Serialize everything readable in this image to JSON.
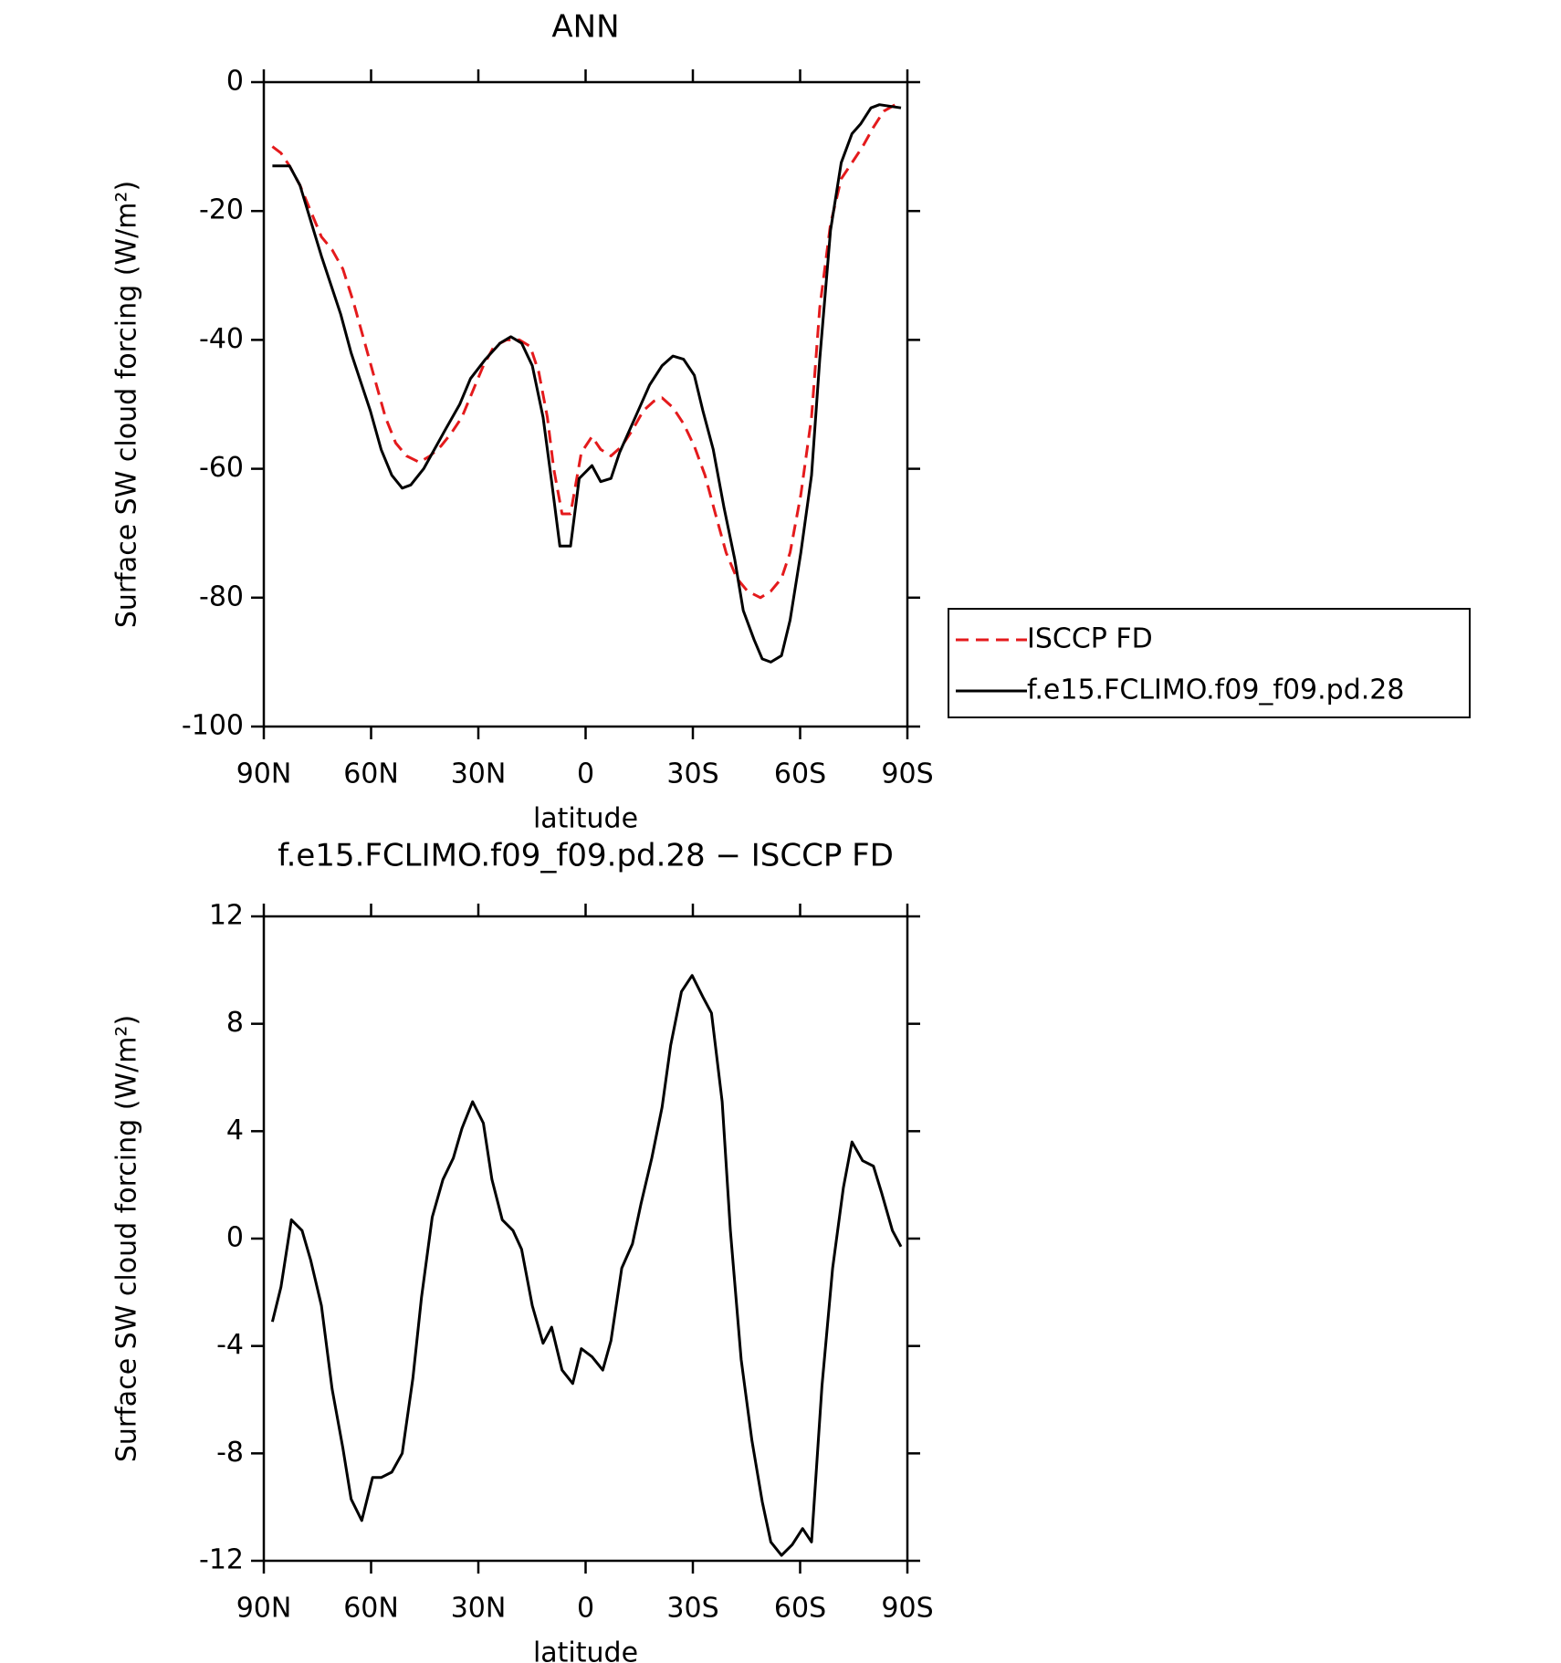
{
  "chart_data": [
    {
      "type": "line",
      "title": "ANN",
      "xlabel": "latitude",
      "ylabel": "Surface SW cloud forcing (W/m²)",
      "xlim": [
        90,
        -90
      ],
      "xticks": [
        {
          "value": 90,
          "label": "90N"
        },
        {
          "value": 60,
          "label": "60N"
        },
        {
          "value": 30,
          "label": "30N"
        },
        0,
        {
          "value": -30,
          "label": "30S"
        },
        {
          "value": -60,
          "label": "60S"
        },
        {
          "value": -90,
          "label": "90S"
        }
      ],
      "ylim": [
        -100,
        0
      ],
      "yticks": [
        -100,
        -80,
        -60,
        -40,
        -20,
        0
      ],
      "legend": "right",
      "series": [
        {
          "name": "ISCCP FD",
          "color": "#e41a1c",
          "dash": true,
          "x": [
            87.6,
            85.2,
            82.8,
            79.9,
            76.9,
            73.9,
            70.9,
            67.9,
            65.0,
            62.0,
            59.0,
            56.0,
            53.1,
            50.1,
            46.5,
            43.5,
            40.5,
            37.6,
            34.6,
            31.6,
            28.6,
            25.6,
            22.1,
            18.5,
            15.5,
            13.1,
            10.7,
            8.9,
            6.6,
            4.2,
            1.2,
            -1.8,
            -4.2,
            -7.1,
            -10.1,
            -13.1,
            -16.1,
            -19.1,
            -21.4,
            -24.4,
            -27.4,
            -30.4,
            -33.4,
            -36.3,
            -39.3,
            -42.3,
            -45.3,
            -48.9,
            -51.8,
            -54.8,
            -57.2,
            -60.2,
            -63.2,
            -65.5,
            -68.5,
            -71.5,
            -74.5,
            -77.5,
            -80.5,
            -83.4,
            -88.2
          ],
          "values": [
            -10,
            -11,
            -13,
            -16,
            -20,
            -24,
            -26,
            -29,
            -34,
            -40,
            -46,
            -52,
            -56,
            -58,
            -59,
            -58,
            -56.5,
            -54.5,
            -52,
            -48,
            -44,
            -41,
            -40,
            -40,
            -41,
            -45,
            -52,
            -60,
            -67,
            -67,
            -57.5,
            -55,
            -57,
            -58,
            -56.5,
            -54,
            -51,
            -49.5,
            -49,
            -50.5,
            -53,
            -56.5,
            -61,
            -67,
            -73,
            -77,
            -79,
            -80,
            -79,
            -77,
            -73,
            -64,
            -52,
            -35,
            -22,
            -15,
            -12.5,
            -10,
            -7,
            -4.5,
            -3
          ]
        },
        {
          "name": "f.e15.FCLIMO.f09_f09.pd.28",
          "color": "#000000",
          "dash": false,
          "x": [
            87.6,
            82.8,
            79.9,
            73.9,
            68.5,
            65.6,
            62.6,
            60.2,
            57.2,
            54.2,
            51.3,
            48.9,
            45.3,
            39.3,
            35.2,
            32.2,
            28.0,
            23.9,
            20.9,
            17.9,
            14.9,
            11.9,
            9.5,
            7.2,
            4.2,
            1.8,
            -1.8,
            -4.2,
            -7.1,
            -9.5,
            -13.1,
            -17.9,
            -21.4,
            -24.4,
            -27.4,
            -30.4,
            -32.8,
            -35.7,
            -38.7,
            -41.7,
            -44.1,
            -47.1,
            -49.4,
            -51.8,
            -54.8,
            -57.2,
            -60.2,
            -63.2,
            -65.5,
            -68.5,
            -71.5,
            -74.5,
            -76.9,
            -79.8,
            -82.2,
            -88.2
          ],
          "values": [
            -13,
            -13,
            -16,
            -27,
            -36,
            -42,
            -47,
            -51,
            -57,
            -61,
            -63,
            -62.5,
            -60,
            -54,
            -50,
            -46,
            -43,
            -40.5,
            -39.5,
            -40.5,
            -44,
            -52,
            -62,
            -72,
            -72,
            -61.5,
            -59.5,
            -62,
            -61.5,
            -57.5,
            -53,
            -47,
            -44,
            -42.5,
            -43,
            -45.5,
            -51,
            -57,
            -66,
            -74,
            -82,
            -86.5,
            -89.5,
            -90,
            -89,
            -83.5,
            -73,
            -61,
            -43,
            -23,
            -12.5,
            -8,
            -6.5,
            -4,
            -3.5,
            -4
          ]
        }
      ]
    },
    {
      "type": "line",
      "title": "f.e15.FCLIMO.f09_f09.pd.28 − ISCCP FD",
      "xlabel": "latitude",
      "ylabel": "Surface SW cloud forcing (W/m²)",
      "xlim": [
        90,
        -90
      ],
      "xticks": [
        {
          "value": 90,
          "label": "90N"
        },
        {
          "value": 60,
          "label": "60N"
        },
        {
          "value": 30,
          "label": "30N"
        },
        0,
        {
          "value": -30,
          "label": "30S"
        },
        {
          "value": -60,
          "label": "60S"
        },
        {
          "value": -90,
          "label": "90S"
        }
      ],
      "ylim": [
        -12,
        12
      ],
      "yticks": [
        -12,
        -8,
        -4,
        0,
        4,
        8,
        12
      ],
      "series": [
        {
          "color": "#000000",
          "dash": false,
          "x": [
            87.6,
            85.2,
            82.3,
            79.3,
            76.9,
            73.9,
            70.9,
            67.9,
            65.6,
            62.6,
            59.6,
            57.2,
            54.2,
            51.3,
            48.3,
            45.9,
            42.9,
            39.9,
            37.0,
            34.6,
            31.6,
            28.6,
            26.2,
            23.3,
            20.3,
            17.9,
            14.9,
            11.9,
            9.5,
            6.6,
            3.6,
            1.2,
            -1.8,
            -4.8,
            -7.1,
            -10.1,
            -13.1,
            -15.5,
            -18.5,
            -21.4,
            -23.8,
            -26.8,
            -29.8,
            -32.8,
            -35.2,
            -38.2,
            -40.5,
            -43.5,
            -46.5,
            -49.4,
            -51.8,
            -54.8,
            -57.8,
            -60.7,
            -63.2,
            -66.1,
            -69.1,
            -72.1,
            -74.5,
            -77.5,
            -80.5,
            -82.8,
            -85.8,
            -88.2
          ],
          "values": [
            -3.1,
            -1.8,
            0.7,
            0.3,
            -0.8,
            -2.5,
            -5.6,
            -7.8,
            -9.7,
            -10.5,
            -8.9,
            -8.9,
            -8.7,
            -8,
            -5.2,
            -2.2,
            0.8,
            2.2,
            3,
            4.1,
            5.1,
            4.3,
            2.2,
            0.7,
            0.3,
            -0.4,
            -2.5,
            -3.9,
            -3.3,
            -4.9,
            -5.4,
            -4.1,
            -4.4,
            -4.9,
            -3.8,
            -1.1,
            -0.2,
            1.3,
            3,
            4.9,
            7.2,
            9.2,
            9.8,
            9,
            8.4,
            5.1,
            0.3,
            -4.5,
            -7.5,
            -9.8,
            -11.3,
            -11.8,
            -11.4,
            -10.8,
            -11.3,
            -5.5,
            -1.1,
            1.9,
            3.6,
            2.9,
            2.7,
            1.7,
            0.3,
            -0.3
          ]
        }
      ]
    }
  ]
}
